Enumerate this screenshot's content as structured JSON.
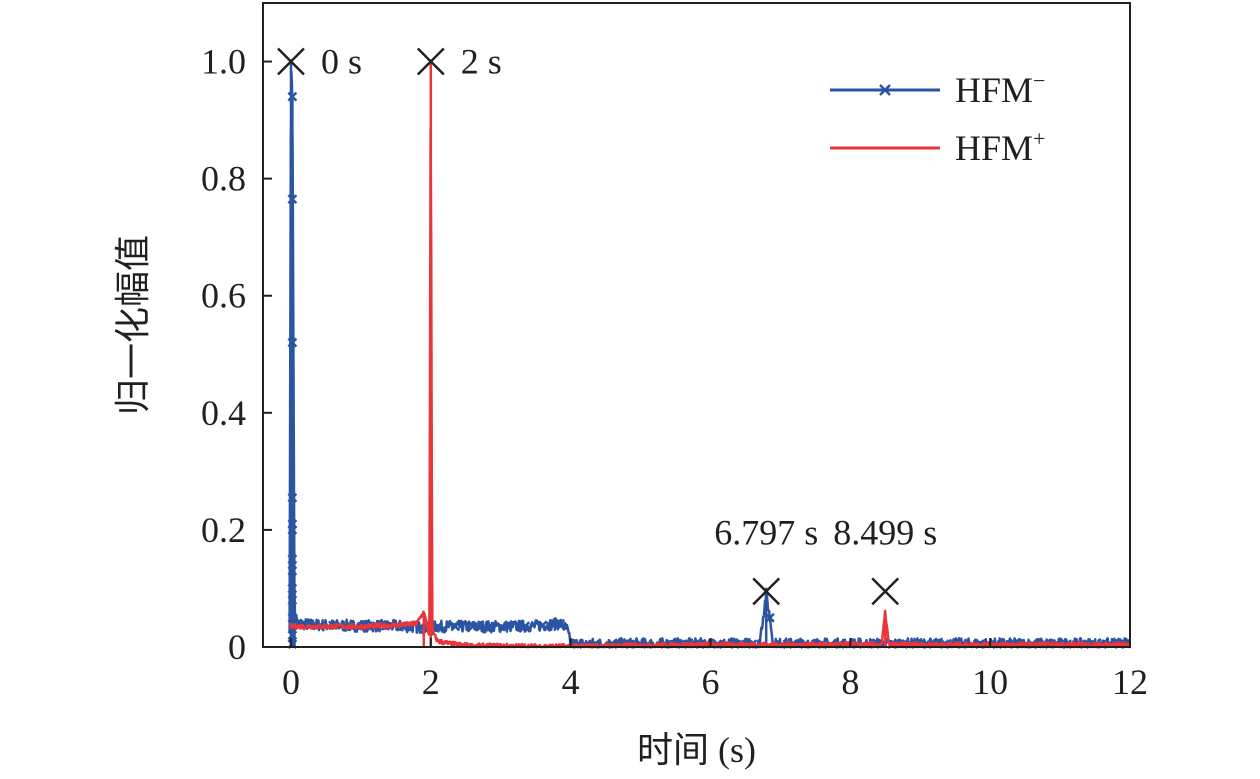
{
  "chart_data": {
    "type": "line",
    "xlabel": "时间 (s)",
    "ylabel": "归一化幅值",
    "xlim": [
      -0.4,
      12
    ],
    "ylim": [
      0,
      1.1
    ],
    "xticks": [
      0,
      2,
      4,
      6,
      8,
      10,
      12
    ],
    "xtick_labels": [
      "0",
      "2",
      "4",
      "6",
      "8",
      "10",
      "12"
    ],
    "yticks": [
      0,
      0.2,
      0.4,
      0.6,
      0.8,
      1.0
    ],
    "ytick_labels": [
      "0",
      "0.2",
      "0.4",
      "0.6",
      "0.8",
      "1.0"
    ],
    "grid": false,
    "legend_position": "top-right",
    "series": [
      {
        "name": "HFM",
        "name_sup": "−",
        "color": "#2b55a3",
        "marker": "x",
        "x": [
          -0.02,
          0.0,
          0.02,
          0.05,
          0.1,
          0.3,
          0.6,
          1.0,
          1.5,
          1.95,
          2.0,
          2.05,
          2.5,
          3.0,
          3.5,
          3.85,
          3.95,
          4.0,
          5.0,
          6.0,
          6.7,
          6.75,
          6.797,
          6.85,
          6.9,
          8.0,
          9.0,
          10.0,
          11.0,
          12.0
        ],
        "y": [
          0.035,
          1.0,
          0.94,
          0.06,
          0.04,
          0.038,
          0.037,
          0.036,
          0.036,
          0.033,
          0.028,
          0.035,
          0.035,
          0.035,
          0.036,
          0.04,
          0.03,
          0.005,
          0.005,
          0.005,
          0.005,
          0.05,
          0.09,
          0.05,
          0.005,
          0.005,
          0.005,
          0.005,
          0.005,
          0.005
        ],
        "marker_y_at_peak": [
          0.94,
          0.765,
          0.52,
          0.255,
          0.21,
          0.2,
          0.15,
          0.13,
          0.1,
          0.08,
          0.05,
          0.02,
          0.005
        ]
      },
      {
        "name": "HFM",
        "name_sup": "+",
        "color": "#e8363a",
        "marker": "none",
        "x": [
          -0.02,
          0.5,
          1.0,
          1.5,
          1.8,
          1.9,
          1.95,
          1.98,
          2.0,
          2.02,
          2.05,
          2.1,
          2.3,
          2.6,
          3.0,
          3.5,
          4.0,
          5.0,
          6.0,
          7.0,
          8.0,
          8.45,
          8.499,
          8.55,
          9.0,
          10.0,
          11.0,
          12.0
        ],
        "y": [
          0.035,
          0.035,
          0.035,
          0.037,
          0.04,
          0.06,
          0.035,
          0.02,
          1.0,
          0.03,
          0.02,
          0.01,
          0.005,
          0.002,
          0.002,
          0.001,
          0.001,
          0.003,
          0.004,
          0.004,
          0.004,
          0.004,
          0.06,
          0.004,
          0.004,
          0.004,
          0.004,
          0.004
        ]
      }
    ],
    "annotations": [
      {
        "label": "0 s",
        "x": 0.0,
        "y": 1.0,
        "text_side": "right"
      },
      {
        "label": "2 s",
        "x": 2.0,
        "y": 1.0,
        "text_side": "right"
      },
      {
        "label": "6.797 s",
        "x": 6.797,
        "y": 0.095,
        "text_side": "above"
      },
      {
        "label": "8.499 s",
        "x": 8.499,
        "y": 0.095,
        "text_side": "above"
      }
    ]
  }
}
